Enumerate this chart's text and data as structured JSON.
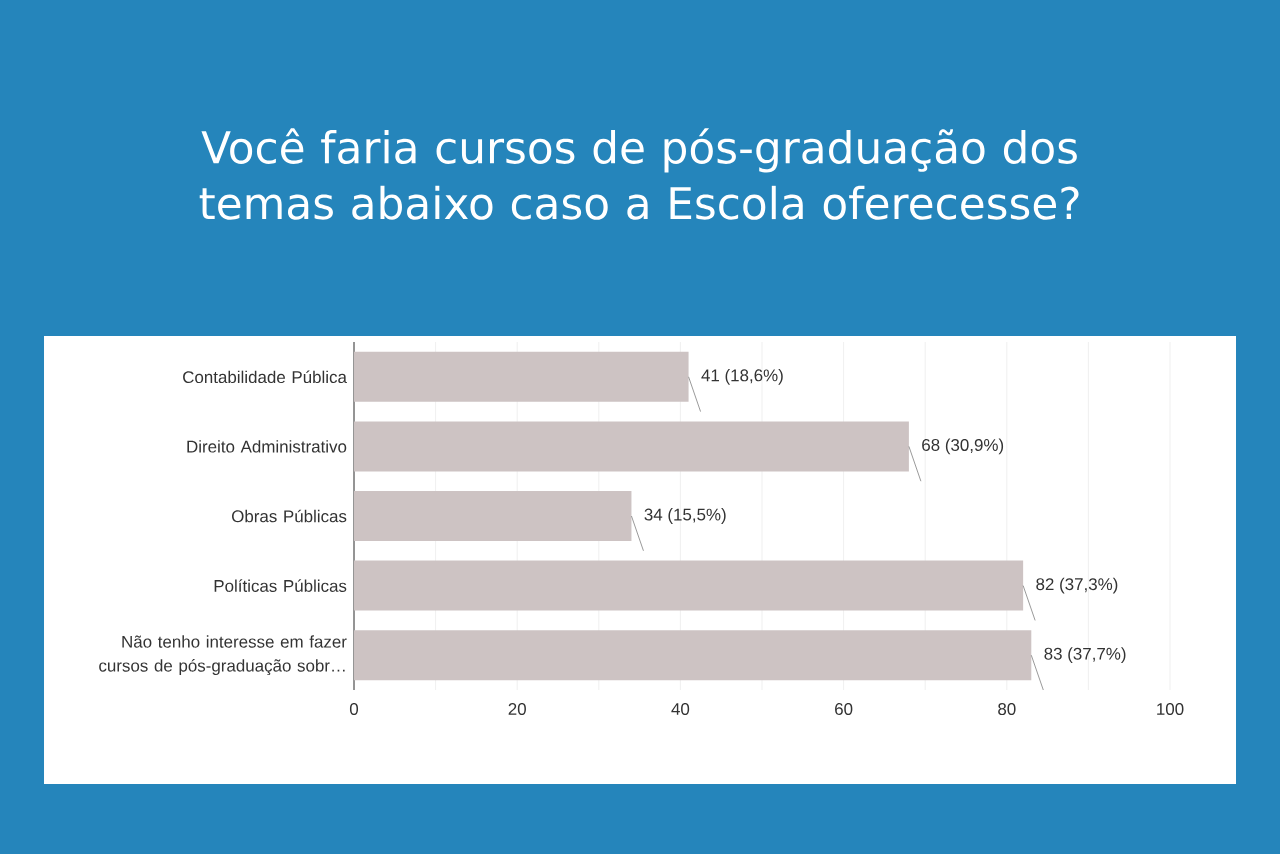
{
  "chart_data": {
    "type": "bar",
    "orientation": "horizontal",
    "title": "Você faria cursos de pós-graduação dos temas abaixo caso a Escola oferecesse?",
    "categories": [
      "Contabilidade Pública",
      "Direito Administrativo",
      "Obras Públicas",
      "Políticas Públicas",
      "Não tenho interesse em fazer cursos de pós-graduação sobr…"
    ],
    "values": [
      41,
      68,
      34,
      82,
      83
    ],
    "value_labels": [
      "41 (18,6%)",
      "68 (30,9%)",
      "34 (15,5%)",
      "82 (37,3%)",
      "83 (37,7%)"
    ],
    "color": "#cdc3c3",
    "xlim": [
      0,
      100
    ],
    "xticks": [
      0,
      20,
      40,
      60,
      80,
      100
    ],
    "grid": "x"
  }
}
